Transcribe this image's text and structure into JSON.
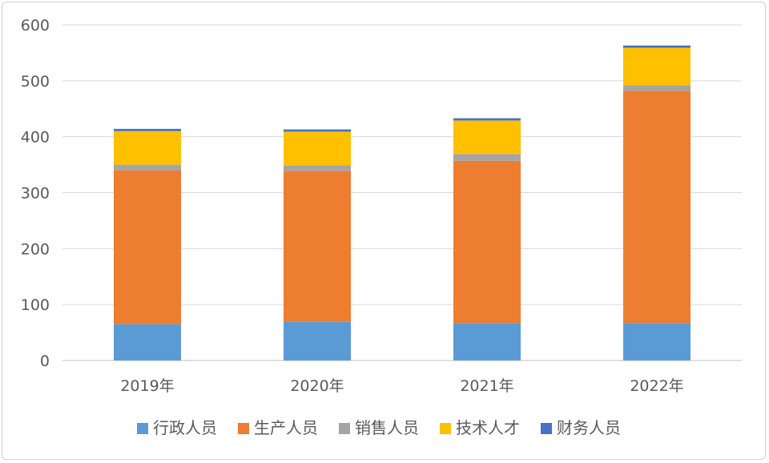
{
  "chart_data": {
    "type": "bar",
    "stacked": true,
    "categories": [
      "2019年",
      "2020年",
      "2021年",
      "2022年"
    ],
    "series": [
      {
        "name": "行政人员",
        "color": "#5B9BD5",
        "values": [
          65,
          69,
          67,
          67
        ]
      },
      {
        "name": "生产人员",
        "color": "#ED7D31",
        "values": [
          275,
          270,
          290,
          415
        ]
      },
      {
        "name": "销售人员",
        "color": "#A5A5A5",
        "values": [
          10,
          10,
          12,
          10
        ]
      },
      {
        "name": "技术人才",
        "color": "#FFC000",
        "values": [
          60,
          60,
          60,
          67
        ]
      },
      {
        "name": "财务人员",
        "color": "#4472C4",
        "values": [
          4,
          4,
          4,
          4
        ]
      }
    ],
    "ylim": [
      0,
      600
    ],
    "yticks": [
      0,
      100,
      200,
      300,
      400,
      500,
      600
    ],
    "grid": true,
    "legend": "bottom",
    "title": "",
    "xlabel": "",
    "ylabel": ""
  }
}
